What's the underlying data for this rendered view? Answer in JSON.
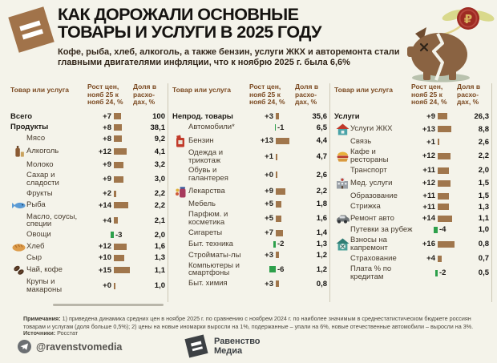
{
  "colors": {
    "background": "#f4f3ea",
    "bar_positive": "#a0764c",
    "bar_negative": "#2da04b",
    "brand_brown": "#a1734a",
    "title_text": "#151310",
    "header_text": "#7b4a22"
  },
  "header": {
    "title_line1": "КАК ДОРОЖАЛИ ОСНОВНЫЕ",
    "title_line2": "ТОВАРЫ И УСЛУГИ В 2025 ГОДУ",
    "subtitle": "Кофе, рыба, хлеб, алкоголь, а также бензин, услуги ЖКХ и авторемонта стали главными двигателями инфляции, что к ноябрю 2025 г. была 6,6%",
    "logo_icon": "equals-sign-logo",
    "illustration": "broken-piggy-bank-with-flying-ruble-coin"
  },
  "table": {
    "column_headers": {
      "item": "Товар или услуга",
      "growth": "Рост цен, нояб 25 к нояб 24, %",
      "share": "Доля в расхо-дах, %"
    },
    "groups": [
      {
        "rows": [
          {
            "label": "Всего",
            "growth_label": "+7",
            "growth": 7,
            "share": "100",
            "bold": true,
            "icon": null
          },
          {
            "label": "Продукты",
            "growth_label": "+8",
            "growth": 8,
            "share": "38,1",
            "bold": true,
            "icon": null
          },
          {
            "label": "Мясо",
            "growth_label": "+8",
            "growth": 8,
            "share": "9,2",
            "bold": false,
            "icon": null
          },
          {
            "label": "Алкоголь",
            "growth_label": "+12",
            "growth": 12,
            "share": "4,1",
            "bold": false,
            "icon": "alcohol-icon"
          },
          {
            "label": "Молоко",
            "growth_label": "+9",
            "growth": 9,
            "share": "3,2",
            "bold": false,
            "icon": null
          },
          {
            "label": "Сахар и сладости",
            "growth_label": "+9",
            "growth": 9,
            "share": "3,0",
            "bold": false,
            "icon": null
          },
          {
            "label": "Фрукты",
            "growth_label": "+2",
            "growth": 2,
            "share": "2,2",
            "bold": false,
            "icon": null
          },
          {
            "label": "Рыба",
            "growth_label": "+14",
            "growth": 14,
            "share": "2,2",
            "bold": false,
            "icon": "fish-icon"
          },
          {
            "label": "Масло, соусы, специи",
            "growth_label": "+4",
            "growth": 4,
            "share": "2,1",
            "bold": false,
            "icon": null
          },
          {
            "label": "Овощи",
            "growth_label": "-3",
            "growth": -3,
            "share": "2,0",
            "bold": false,
            "icon": null
          },
          {
            "label": "Хлеб",
            "growth_label": "+12",
            "growth": 12,
            "share": "1,6",
            "bold": false,
            "icon": "bread-icon"
          },
          {
            "label": "Сыр",
            "growth_label": "+10",
            "growth": 10,
            "share": "1,3",
            "bold": false,
            "icon": null
          },
          {
            "label": "Чай, кофе",
            "growth_label": "+15",
            "growth": 15,
            "share": "1,1",
            "bold": false,
            "icon": "coffee-beans-icon"
          },
          {
            "label": "Крупы и макароны",
            "growth_label": "+0",
            "growth": 0,
            "share": "1,0",
            "bold": false,
            "icon": null
          }
        ]
      },
      {
        "rows": [
          {
            "label": "Непрод. товары",
            "growth_label": "+3",
            "growth": 3,
            "share": "35,6",
            "bold": true,
            "icon": null
          },
          {
            "label": "Автомобили*",
            "growth_label": "-1",
            "growth": -1,
            "share": "6,5",
            "bold": false,
            "icon": null
          },
          {
            "label": "Бензин",
            "growth_label": "+13",
            "growth": 13,
            "share": "4,4",
            "bold": false,
            "icon": "fuel-can-icon"
          },
          {
            "label": "Одежда и трикотаж",
            "growth_label": "+1",
            "growth": 1,
            "share": "4,7",
            "bold": false,
            "icon": null
          },
          {
            "label": "Обувь и галантерея",
            "growth_label": "+0",
            "growth": 0,
            "share": "2,6",
            "bold": false,
            "icon": null
          },
          {
            "label": "Лекарства",
            "growth_label": "+9",
            "growth": 9,
            "share": "2,2",
            "bold": false,
            "icon": "medicine-icon"
          },
          {
            "label": "Мебель",
            "growth_label": "+5",
            "growth": 5,
            "share": "1,8",
            "bold": false,
            "icon": null
          },
          {
            "label": "Парфюм. и косметика",
            "growth_label": "+5",
            "growth": 5,
            "share": "1,6",
            "bold": false,
            "icon": null
          },
          {
            "label": "Сигареты",
            "growth_label": "+7",
            "growth": 7,
            "share": "1,4",
            "bold": false,
            "icon": null
          },
          {
            "label": "Быт. техника",
            "growth_label": "-2",
            "growth": -2,
            "share": "1,3",
            "bold": false,
            "icon": null
          },
          {
            "label": "Стройматы-лы",
            "growth_label": "+3",
            "growth": 3,
            "share": "1,2",
            "bold": false,
            "icon": null
          },
          {
            "label": "Компьютеры и смартфоны",
            "growth_label": "-6",
            "growth": -6,
            "share": "1,2",
            "bold": false,
            "icon": null
          },
          {
            "label": "Быт. химия",
            "growth_label": "+3",
            "growth": 3,
            "share": "0,8",
            "bold": false,
            "icon": null
          }
        ]
      },
      {
        "rows": [
          {
            "label": "Услуги",
            "growth_label": "+9",
            "growth": 9,
            "share": "26,3",
            "bold": true,
            "icon": null
          },
          {
            "label": "Услуги ЖКХ",
            "growth_label": "+13",
            "growth": 13,
            "share": "8,8",
            "bold": false,
            "icon": "house-icon"
          },
          {
            "label": "Связь",
            "growth_label": "+1",
            "growth": 1,
            "share": "2,6",
            "bold": false,
            "icon": null
          },
          {
            "label": "Кафе и рестораны",
            "growth_label": "+12",
            "growth": 12,
            "share": "2,2",
            "bold": false,
            "icon": "cafe-icon"
          },
          {
            "label": "Транспорт",
            "growth_label": "+11",
            "growth": 11,
            "share": "2,0",
            "bold": false,
            "icon": null
          },
          {
            "label": "Мед. услуги",
            "growth_label": "+12",
            "growth": 12,
            "share": "1,5",
            "bold": false,
            "icon": "hospital-icon"
          },
          {
            "label": "Образование",
            "growth_label": "+11",
            "growth": 11,
            "share": "1,5",
            "bold": false,
            "icon": null
          },
          {
            "label": "Стрижка",
            "growth_label": "+11",
            "growth": 11,
            "share": "1,3",
            "bold": false,
            "icon": null
          },
          {
            "label": "Ремонт авто",
            "growth_label": "+14",
            "growth": 14,
            "share": "1,1",
            "bold": false,
            "icon": "car-icon"
          },
          {
            "label": "Путевки за рубеж",
            "growth_label": "-4",
            "growth": -4,
            "share": "1,0",
            "bold": false,
            "icon": null
          },
          {
            "label": "Взносы на капремонт",
            "growth_label": "+16",
            "growth": 16,
            "share": "0,8",
            "bold": false,
            "icon": "house-repair-icon"
          },
          {
            "label": "Страхование",
            "growth_label": "+4",
            "growth": 4,
            "share": "0,7",
            "bold": false,
            "icon": null
          },
          {
            "label": "Плата % по кредитам",
            "growth_label": "-2",
            "growth": -2,
            "share": "0,5",
            "bold": false,
            "icon": null
          }
        ]
      }
    ]
  },
  "footer": {
    "notes_label": "Примечания:",
    "notes": "1) приведена динамика средних цен в ноябре 2025 г. по сравнению с ноябрем 2024 г. по наиболее значимым в среднестатистическом бюджете россиян товарам и услугам (доля больше 0,5%); 2) цены на новые иномарки выросли на 1%, подержанные – упали на 6%, новые отечественные автомобили – выросли на 3%.",
    "source_label": "Источники:",
    "source": "Росстат",
    "telegram_icon": "telegram-icon",
    "telegram_handle": "@ravenstvomedia",
    "brand_line1": "Равенство",
    "brand_line2": "Медиа"
  },
  "chart_data": {
    "type": "bar",
    "title": "КАК ДОРОЖАЛИ ОСНОВНЫЕ ТОВАРЫ И УСЛУГИ В 2025 ГОДУ",
    "subtitle": "Кофе, рыба, хлеб, алкоголь, а также бензин, услуги ЖКХ и авторемонта стали главными двигателями инфляции, что к ноябрю 2025 г. была 6,6%",
    "measures": [
      "Рост цен, нояб 25 к нояб 24, %",
      "Доля в расходах, %"
    ],
    "bar_colors": {
      "positive": "#a0764c",
      "negative": "#2da04b"
    },
    "sections": [
      {
        "section": "Всего и продукты",
        "categories": [
          "Всего",
          "Продукты",
          "Мясо",
          "Алкоголь",
          "Молоко",
          "Сахар и сладости",
          "Фрукты",
          "Рыба",
          "Масло, соусы, специи",
          "Овощи",
          "Хлеб",
          "Сыр",
          "Чай, кофе",
          "Крупы и макароны"
        ],
        "growth_pct": [
          7,
          8,
          8,
          12,
          9,
          9,
          2,
          14,
          4,
          -3,
          12,
          10,
          15,
          0
        ],
        "share_pct": [
          100,
          38.1,
          9.2,
          4.1,
          3.2,
          3.0,
          2.2,
          2.2,
          2.1,
          2.0,
          1.6,
          1.3,
          1.1,
          1.0
        ]
      },
      {
        "section": "Непродовольственные товары",
        "categories": [
          "Непрод. товары",
          "Автомобили*",
          "Бензин",
          "Одежда и трикотаж",
          "Обувь и галантерея",
          "Лекарства",
          "Мебель",
          "Парфюм. и косметика",
          "Сигареты",
          "Быт. техника",
          "Стройматы-лы",
          "Компьютеры и смартфоны",
          "Быт. химия"
        ],
        "growth_pct": [
          3,
          -1,
          13,
          1,
          0,
          9,
          5,
          5,
          7,
          -2,
          3,
          -6,
          3
        ],
        "share_pct": [
          35.6,
          6.5,
          4.4,
          4.7,
          2.6,
          2.2,
          1.8,
          1.6,
          1.4,
          1.3,
          1.2,
          1.2,
          0.8
        ]
      },
      {
        "section": "Услуги",
        "categories": [
          "Услуги",
          "Услуги ЖКХ",
          "Связь",
          "Кафе и рестораны",
          "Транспорт",
          "Мед. услуги",
          "Образование",
          "Стрижка",
          "Ремонт авто",
          "Путевки за рубеж",
          "Взносы на капремонт",
          "Страхование",
          "Плата % по кредитам"
        ],
        "growth_pct": [
          9,
          13,
          1,
          12,
          11,
          12,
          11,
          11,
          14,
          -4,
          16,
          4,
          -2
        ],
        "share_pct": [
          26.3,
          8.8,
          2.6,
          2.2,
          2.0,
          1.5,
          1.5,
          1.3,
          1.1,
          1.0,
          0.8,
          0.7,
          0.5
        ]
      }
    ]
  }
}
